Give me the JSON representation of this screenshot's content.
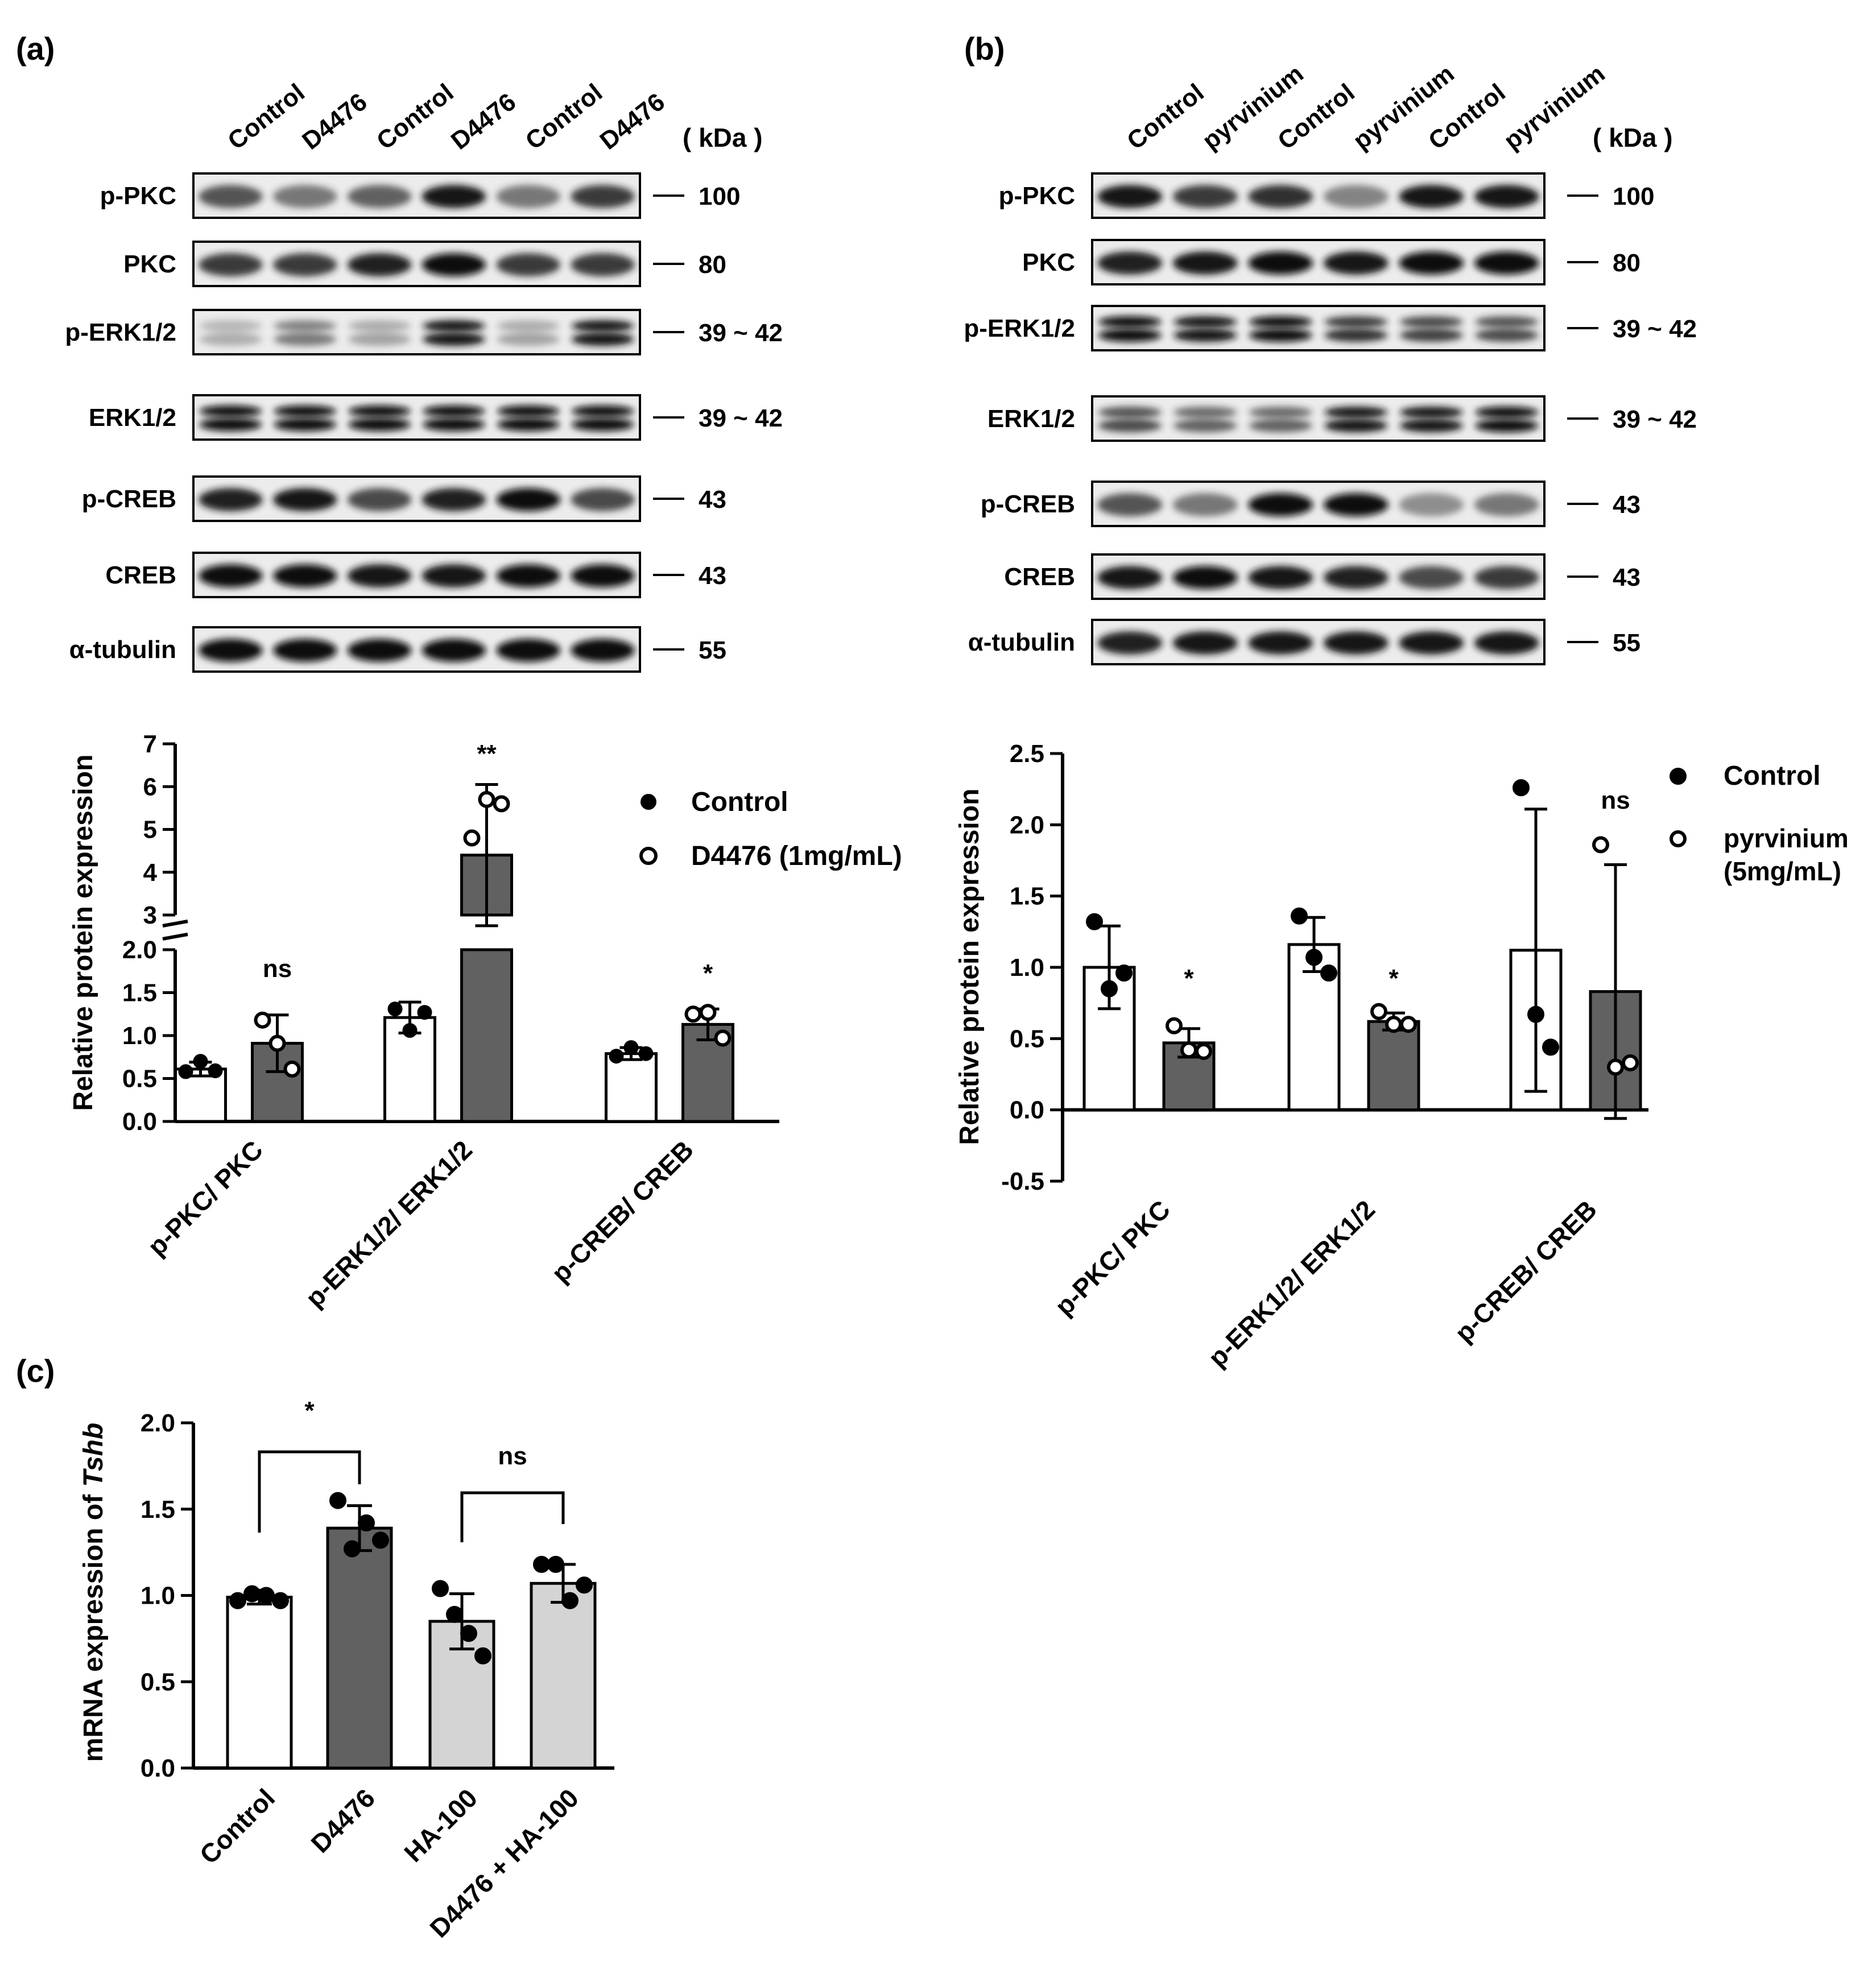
{
  "panels": {
    "a": {
      "label": "(a)",
      "lanes": [
        "Control",
        "D4476",
        "Control",
        "D4476",
        "Control",
        "D4476"
      ],
      "kda_label": "( kDa )",
      "blots": [
        {
          "name": "p-PKC",
          "kda": "100"
        },
        {
          "name": "PKC",
          "kda": "80"
        },
        {
          "name": "p-ERK1/2",
          "kda": "39 ~ 42"
        },
        {
          "name": "ERK1/2",
          "kda": "39 ~ 42"
        },
        {
          "name": "p-CREB",
          "kda": "43"
        },
        {
          "name": "CREB",
          "kda": "43"
        },
        {
          "name": "α-tubulin",
          "kda": "55"
        }
      ]
    },
    "b": {
      "label": "(b)",
      "lanes": [
        "Control",
        "pyrvinium",
        "Control",
        "pyrvinium",
        "Control",
        "pyrvinium"
      ],
      "kda_label": "( kDa )",
      "blots": [
        {
          "name": "p-PKC",
          "kda": "100"
        },
        {
          "name": "PKC",
          "kda": "80"
        },
        {
          "name": "p-ERK1/2",
          "kda": "39 ~ 42"
        },
        {
          "name": "ERK1/2",
          "kda": "39 ~ 42"
        },
        {
          "name": "p-CREB",
          "kda": "43"
        },
        {
          "name": "CREB",
          "kda": "43"
        },
        {
          "name": "α-tubulin",
          "kda": "55"
        }
      ]
    },
    "c": {
      "label": "(c)"
    }
  },
  "chart_data": [
    {
      "id": "a",
      "type": "bar",
      "ylabel": "Relative protein expression",
      "axis_break": {
        "lower": [
          0,
          2.0
        ],
        "upper": [
          3,
          7
        ]
      },
      "lower_ticks": [
        "0.0",
        "0.5",
        "1.0",
        "1.5",
        "2.0"
      ],
      "upper_ticks": [
        "3",
        "4",
        "5",
        "6",
        "7"
      ],
      "categories": [
        "p-PKC/ PKC",
        "p-ERK1/2/ ERK1/2",
        "p-CREB/ CREB"
      ],
      "series": [
        {
          "name": "Control",
          "color": "#ffffff",
          "marker": "filled",
          "values": [
            0.61,
            1.21,
            0.79
          ],
          "errors": [
            0.08,
            0.18,
            0.07
          ],
          "points": [
            [
              0.58,
              0.7,
              0.59
            ],
            [
              1.31,
              1.06,
              1.27
            ],
            [
              0.76,
              0.86,
              0.79
            ]
          ]
        },
        {
          "name": "D4476 (1mg/mL)",
          "color": "#616161",
          "marker": "open",
          "values": [
            0.91,
            4.4,
            1.13
          ],
          "errors": [
            0.33,
            1.65,
            0.18
          ],
          "points": [
            [
              1.18,
              0.91,
              0.61
            ],
            [
              4.8,
              5.7,
              5.6
            ],
            [
              1.25,
              1.27,
              0.97
            ]
          ]
        }
      ],
      "significance": [
        "ns",
        "**",
        "*"
      ],
      "legend": "right"
    },
    {
      "id": "b",
      "type": "bar",
      "ylabel": "Relative protein expression",
      "ylim": [
        -0.5,
        2.5
      ],
      "ticks": [
        "-0.5",
        "0.0",
        "0.5",
        "1.0",
        "1.5",
        "2.0",
        "2.5"
      ],
      "categories": [
        "p-PKC/ PKC",
        "p-ERK1/2/ ERK1/2",
        "p-CREB/ CREB"
      ],
      "series": [
        {
          "name": "Control",
          "color": "#ffffff",
          "marker": "filled",
          "values": [
            1.0,
            1.16,
            1.12
          ],
          "errors": [
            0.29,
            0.19,
            0.99
          ],
          "points": [
            [
              1.32,
              0.85,
              0.96
            ],
            [
              1.36,
              1.07,
              0.96
            ],
            [
              2.26,
              0.67,
              0.44
            ]
          ]
        },
        {
          "name": "pyrvinium\n(5mg/mL)",
          "name_lines": [
            "pyrvinium",
            "(5mg/mL)"
          ],
          "color": "#616161",
          "marker": "open",
          "values": [
            0.47,
            0.62,
            0.83
          ],
          "errors": [
            0.1,
            0.06,
            0.89
          ],
          "points": [
            [
              0.59,
              0.42,
              0.41
            ],
            [
              0.69,
              0.6,
              0.6
            ],
            [
              1.86,
              0.3,
              0.33
            ]
          ]
        }
      ],
      "significance": [
        "*",
        "*",
        "ns"
      ],
      "legend": "top-right"
    },
    {
      "id": "c",
      "type": "bar",
      "ylabel": "mRNA expression of ",
      "ylabel_italic": "Tshb",
      "ylim": [
        0,
        2.0
      ],
      "ticks": [
        "0.0",
        "0.5",
        "1.0",
        "1.5",
        "2.0"
      ],
      "categories": [
        "Control",
        "D4476",
        "HA-100",
        "D4476 + HA-100"
      ],
      "values": [
        0.99,
        1.39,
        0.85,
        1.07
      ],
      "errors": [
        0.04,
        0.13,
        0.16,
        0.11
      ],
      "colors": [
        "#ffffff",
        "#616161",
        "#d4d4d4",
        "#d4d4d4"
      ],
      "points": [
        [
          0.97,
          1.01,
          1.0,
          0.97
        ],
        [
          1.55,
          1.27,
          1.42,
          1.32
        ],
        [
          1.04,
          0.89,
          0.78,
          0.65
        ],
        [
          1.18,
          1.18,
          0.97,
          1.06
        ]
      ],
      "comparisons": [
        {
          "pair": [
            0,
            1
          ],
          "label": "*"
        },
        {
          "pair": [
            2,
            3
          ],
          "label": "ns"
        }
      ]
    }
  ]
}
